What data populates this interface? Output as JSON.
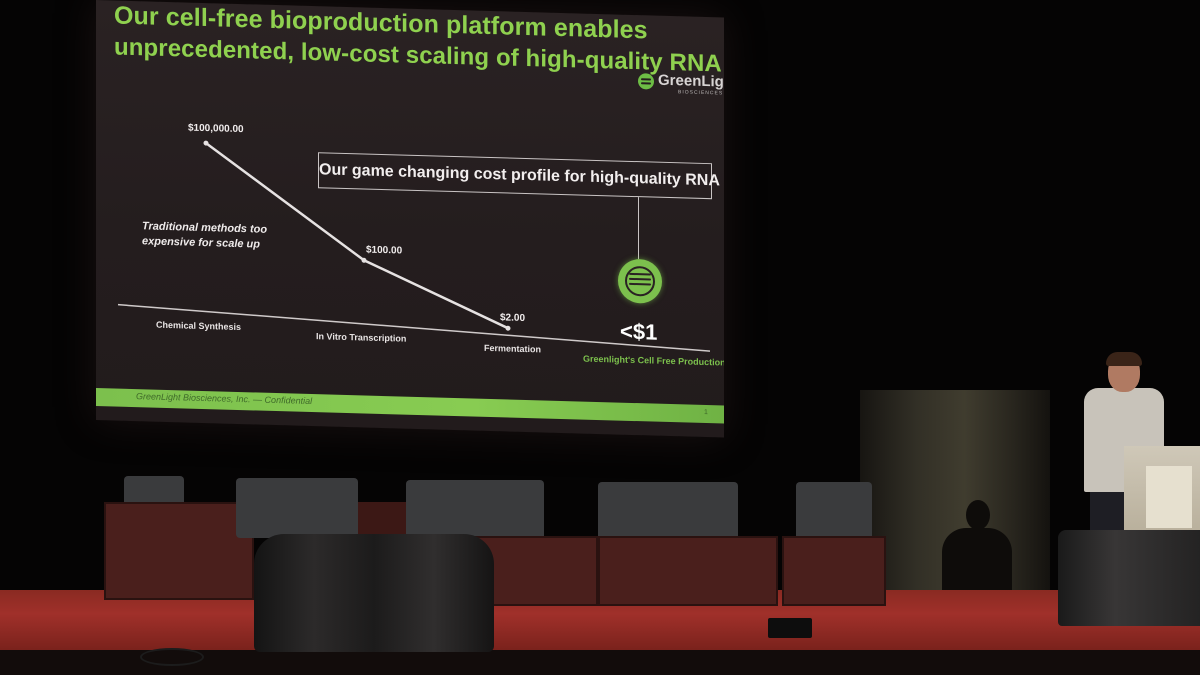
{
  "slide": {
    "title_lines": [
      "Our cell-free bioproduction platform enables",
      "unprecedented, low-cost scaling of high-quality RNA"
    ],
    "logo": {
      "name": "GreenLight",
      "subtitle": "BIOSCIENCES"
    },
    "callout": "Our game changing cost profile for high-quality RNA",
    "note_lines": [
      "Traditional methods too",
      "expensive for scale up"
    ],
    "highlight_value": "<$1",
    "footer": "GreenLight Biosciences, Inc. — Confidential",
    "page_number": "1",
    "colors": {
      "accent": "#7cc04d",
      "background": "#241d1e",
      "text": "#f2eeee"
    }
  },
  "chart_data": {
    "type": "line",
    "categories": [
      "Chemical Synthesis",
      "In Vitro Transcription",
      "Fermentation",
      "Greenlight's Cell Free Production"
    ],
    "values": [
      100000,
      100,
      2,
      1
    ],
    "value_labels": [
      "$100,000.00",
      "$100.00",
      "$2.00",
      "<$1"
    ],
    "title": "",
    "xlabel": "",
    "ylabel": "",
    "log_scale": true,
    "grid": false
  },
  "stage": {
    "icons": [
      "armchair-icon",
      "podium-icon",
      "speaker-icon",
      "table-icon"
    ]
  }
}
